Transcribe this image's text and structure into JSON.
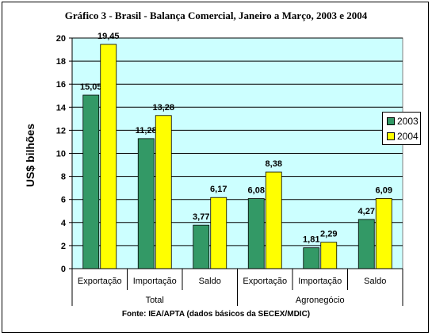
{
  "title": "Gráfico 3 - Brasil - Balança Comercial, Janeiro a Março, 2003 e 2004",
  "source": "Fonte: IEA/APTA (dados básicos da SECEX/MDIC)",
  "colors": {
    "plot_bg": "#ccffff",
    "series_2003": "#339966",
    "series_2004": "#ffff00"
  },
  "chart_data": {
    "type": "bar",
    "title": "Gráfico 3 - Brasil - Balança Comercial, Janeiro a Março, 2003 e 2004",
    "ylabel": "US$ bilhões",
    "xlabel": "",
    "ylim": [
      0,
      20
    ],
    "yticks": [
      0,
      2,
      4,
      6,
      8,
      10,
      12,
      14,
      16,
      18,
      20
    ],
    "grid": true,
    "legend_position": "right",
    "categories": [
      "Exportação",
      "Importação",
      "Saldo",
      "Exportação",
      "Importação",
      "Saldo"
    ],
    "groups": [
      {
        "label": "Total",
        "categories": [
          "Exportação",
          "Importação",
          "Saldo"
        ]
      },
      {
        "label": "Agronegócio",
        "categories": [
          "Exportação",
          "Importação",
          "Saldo"
        ]
      }
    ],
    "series": [
      {
        "name": "2003",
        "values": [
          15.05,
          11.28,
          3.77,
          6.08,
          1.81,
          4.27
        ],
        "labels": [
          "15,05",
          "11,28",
          "3,77",
          "6,08",
          "1,81",
          "4,27"
        ]
      },
      {
        "name": "2004",
        "values": [
          19.45,
          13.28,
          6.17,
          8.38,
          2.29,
          6.09
        ],
        "labels": [
          "19,45",
          "13,28",
          "6,17",
          "8,38",
          "2,29",
          "6,09"
        ]
      }
    ]
  }
}
